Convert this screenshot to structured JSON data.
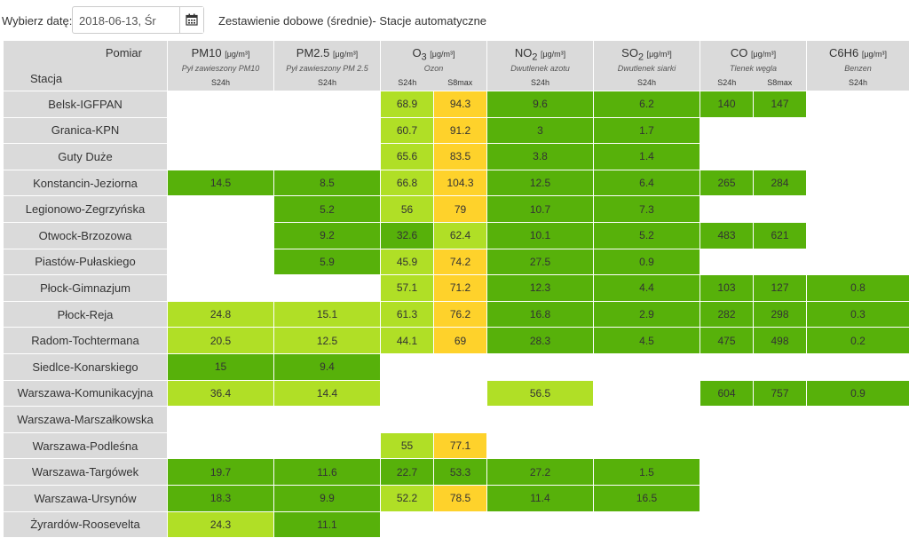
{
  "header": {
    "date_label": "Wybierz datę:",
    "date_value": "2018-06-13, Śr",
    "report_title": "Zestawienie dobowe (średnie)- Stacje automatyczne"
  },
  "table": {
    "corner": {
      "top": "Pomiar",
      "bottom": "Stacja"
    },
    "pollutants": [
      {
        "name": "PM10",
        "sub": "",
        "unit": "[μg/m³]",
        "desc": "Pył zawieszony PM10",
        "cols": [
          "S24h"
        ]
      },
      {
        "name": "PM2.5",
        "sub": "",
        "unit": "[μg/m³]",
        "desc": "Pył zawieszony PM 2.5",
        "cols": [
          "S24h"
        ]
      },
      {
        "name": "O",
        "sub": "3",
        "unit": "[μg/m³]",
        "desc": "Ozon",
        "cols": [
          "S24h",
          "S8max"
        ]
      },
      {
        "name": "NO",
        "sub": "2",
        "unit": "[μg/m³]",
        "desc": "Dwutlenek azotu",
        "cols": [
          "S24h"
        ]
      },
      {
        "name": "SO",
        "sub": "2",
        "unit": "[μg/m³]",
        "desc": "Dwutlenek siarki",
        "cols": [
          "S24h"
        ]
      },
      {
        "name": "CO",
        "sub": "",
        "unit": "[μg/m³]",
        "desc": "Tlenek węgla",
        "cols": [
          "S24h",
          "S8max"
        ]
      },
      {
        "name": "C6H6",
        "sub": "",
        "unit": "[μg/m³]",
        "desc": "Benzen",
        "cols": [
          "S24h"
        ]
      }
    ],
    "rows": [
      {
        "station": "Belsk-IGFPAN",
        "cells": [
          [
            "",
            ""
          ],
          [
            "",
            ""
          ],
          [
            "68.9",
            "lg"
          ],
          [
            "94.3",
            "y"
          ],
          [
            "9.6",
            "dg"
          ],
          [
            "6.2",
            "dg"
          ],
          [
            "140",
            "dg"
          ],
          [
            "147",
            "dg"
          ],
          [
            "",
            ""
          ]
        ]
      },
      {
        "station": "Granica-KPN",
        "cells": [
          [
            "",
            ""
          ],
          [
            "",
            ""
          ],
          [
            "60.7",
            "lg"
          ],
          [
            "91.2",
            "y"
          ],
          [
            "3",
            "dg"
          ],
          [
            "1.7",
            "dg"
          ],
          [
            "",
            ""
          ],
          [
            "",
            ""
          ],
          [
            "",
            ""
          ]
        ]
      },
      {
        "station": "Guty Duże",
        "cells": [
          [
            "",
            ""
          ],
          [
            "",
            ""
          ],
          [
            "65.6",
            "lg"
          ],
          [
            "83.5",
            "y"
          ],
          [
            "3.8",
            "dg"
          ],
          [
            "1.4",
            "dg"
          ],
          [
            "",
            ""
          ],
          [
            "",
            ""
          ],
          [
            "",
            ""
          ]
        ]
      },
      {
        "station": "Konstancin-Jeziorna",
        "cells": [
          [
            "14.5",
            "dg"
          ],
          [
            "8.5",
            "dg"
          ],
          [
            "66.8",
            "lg"
          ],
          [
            "104.3",
            "y"
          ],
          [
            "12.5",
            "dg"
          ],
          [
            "6.4",
            "dg"
          ],
          [
            "265",
            "dg"
          ],
          [
            "284",
            "dg"
          ],
          [
            "",
            ""
          ]
        ]
      },
      {
        "station": "Legionowo-Zegrzyńska",
        "cells": [
          [
            "",
            ""
          ],
          [
            "5.2",
            "dg"
          ],
          [
            "56",
            "lg"
          ],
          [
            "79",
            "y"
          ],
          [
            "10.7",
            "dg"
          ],
          [
            "7.3",
            "dg"
          ],
          [
            "",
            ""
          ],
          [
            "",
            ""
          ],
          [
            "",
            ""
          ]
        ]
      },
      {
        "station": "Otwock-Brzozowa",
        "cells": [
          [
            "",
            ""
          ],
          [
            "9.2",
            "dg"
          ],
          [
            "32.6",
            "dg"
          ],
          [
            "62.4",
            "lg"
          ],
          [
            "10.1",
            "dg"
          ],
          [
            "5.2",
            "dg"
          ],
          [
            "483",
            "dg"
          ],
          [
            "621",
            "dg"
          ],
          [
            "",
            ""
          ]
        ]
      },
      {
        "station": "Piastów-Pułaskiego",
        "cells": [
          [
            "",
            ""
          ],
          [
            "5.9",
            "dg"
          ],
          [
            "45.9",
            "lg"
          ],
          [
            "74.2",
            "y"
          ],
          [
            "27.5",
            "dg"
          ],
          [
            "0.9",
            "dg"
          ],
          [
            "",
            ""
          ],
          [
            "",
            ""
          ],
          [
            "",
            ""
          ]
        ]
      },
      {
        "station": "Płock-Gimnazjum",
        "cells": [
          [
            "",
            ""
          ],
          [
            "",
            ""
          ],
          [
            "57.1",
            "lg"
          ],
          [
            "71.2",
            "y"
          ],
          [
            "12.3",
            "dg"
          ],
          [
            "4.4",
            "dg"
          ],
          [
            "103",
            "dg"
          ],
          [
            "127",
            "dg"
          ],
          [
            "0.8",
            "dg"
          ]
        ]
      },
      {
        "station": "Płock-Reja",
        "cells": [
          [
            "24.8",
            "lg"
          ],
          [
            "15.1",
            "lg"
          ],
          [
            "61.3",
            "lg"
          ],
          [
            "76.2",
            "y"
          ],
          [
            "16.8",
            "dg"
          ],
          [
            "2.9",
            "dg"
          ],
          [
            "282",
            "dg"
          ],
          [
            "298",
            "dg"
          ],
          [
            "0.3",
            "dg"
          ]
        ]
      },
      {
        "station": "Radom-Tochtermana",
        "cells": [
          [
            "20.5",
            "lg"
          ],
          [
            "12.5",
            "lg"
          ],
          [
            "44.1",
            "lg"
          ],
          [
            "69",
            "y"
          ],
          [
            "28.3",
            "dg"
          ],
          [
            "4.5",
            "dg"
          ],
          [
            "475",
            "dg"
          ],
          [
            "498",
            "dg"
          ],
          [
            "0.2",
            "dg"
          ]
        ]
      },
      {
        "station": "Siedlce-Konarskiego",
        "cells": [
          [
            "15",
            "dg"
          ],
          [
            "9.4",
            "dg"
          ],
          [
            "",
            ""
          ],
          [
            "",
            ""
          ],
          [
            "",
            ""
          ],
          [
            "",
            ""
          ],
          [
            "",
            ""
          ],
          [
            "",
            ""
          ],
          [
            "",
            ""
          ]
        ]
      },
      {
        "station": "Warszawa-Komunikacyjna",
        "cells": [
          [
            "36.4",
            "lg"
          ],
          [
            "14.4",
            "lg"
          ],
          [
            "",
            ""
          ],
          [
            "",
            ""
          ],
          [
            "56.5",
            "lg"
          ],
          [
            "",
            ""
          ],
          [
            "604",
            "dg"
          ],
          [
            "757",
            "dg"
          ],
          [
            "0.9",
            "dg"
          ]
        ]
      },
      {
        "station": "Warszawa-Marszałkowska",
        "cells": [
          [
            "",
            ""
          ],
          [
            "",
            ""
          ],
          [
            "",
            ""
          ],
          [
            "",
            ""
          ],
          [
            "",
            ""
          ],
          [
            "",
            ""
          ],
          [
            "",
            ""
          ],
          [
            "",
            ""
          ],
          [
            "",
            ""
          ]
        ]
      },
      {
        "station": "Warszawa-Podleśna",
        "cells": [
          [
            "",
            ""
          ],
          [
            "",
            ""
          ],
          [
            "55",
            "lg"
          ],
          [
            "77.1",
            "y"
          ],
          [
            "",
            ""
          ],
          [
            "",
            ""
          ],
          [
            "",
            ""
          ],
          [
            "",
            ""
          ],
          [
            "",
            ""
          ]
        ]
      },
      {
        "station": "Warszawa-Targówek",
        "cells": [
          [
            "19.7",
            "dg"
          ],
          [
            "11.6",
            "dg"
          ],
          [
            "22.7",
            "dg"
          ],
          [
            "53.3",
            "dg"
          ],
          [
            "27.2",
            "dg"
          ],
          [
            "1.5",
            "dg"
          ],
          [
            "",
            ""
          ],
          [
            "",
            ""
          ],
          [
            "",
            ""
          ]
        ]
      },
      {
        "station": "Warszawa-Ursynów",
        "cells": [
          [
            "18.3",
            "dg"
          ],
          [
            "9.9",
            "dg"
          ],
          [
            "52.2",
            "lg"
          ],
          [
            "78.5",
            "y"
          ],
          [
            "11.4",
            "dg"
          ],
          [
            "16.5",
            "dg"
          ],
          [
            "",
            ""
          ],
          [
            "",
            ""
          ],
          [
            "",
            ""
          ]
        ]
      },
      {
        "station": "Żyrardów-Roosevelta",
        "cells": [
          [
            "24.3",
            "lg"
          ],
          [
            "11.1",
            "dg"
          ],
          [
            "",
            ""
          ],
          [
            "",
            ""
          ],
          [
            "",
            ""
          ],
          [
            "",
            ""
          ],
          [
            "",
            ""
          ],
          [
            "",
            ""
          ],
          [
            "",
            ""
          ]
        ]
      }
    ]
  }
}
